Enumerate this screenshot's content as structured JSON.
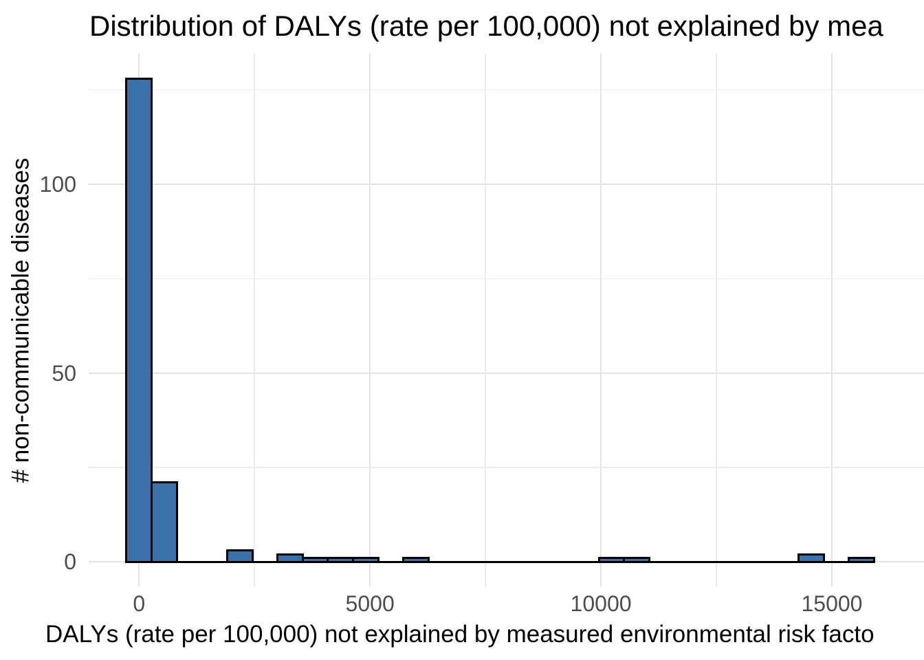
{
  "chart_data": {
    "type": "bar",
    "subtype": "histogram",
    "title": "Distribution of DALYs (rate per 100,000) not explained by mea",
    "xlabel": "DALYs (rate per 100,000) not explained by measured environmental risk facto",
    "ylabel": "# non-communicable diseases",
    "x_ticks": [
      0,
      5000,
      10000,
      15000
    ],
    "x_minor_gridlines": [
      2500,
      7500,
      12500
    ],
    "y_ticks": [
      0,
      50,
      100
    ],
    "y_minor_gridlines": [
      25,
      75,
      125
    ],
    "xlim": [
      -1090,
      16995
    ],
    "ylim": [
      -6.7,
      134.6
    ],
    "binwidth": 545,
    "bins": [
      {
        "x0": -272,
        "x1": 273,
        "count": 128
      },
      {
        "x0": 273,
        "x1": 818,
        "count": 21
      },
      {
        "x0": 1908,
        "x1": 2453,
        "count": 3
      },
      {
        "x0": 2998,
        "x1": 3543,
        "count": 2
      },
      {
        "x0": 3543,
        "x1": 4088,
        "count": 1
      },
      {
        "x0": 4088,
        "x1": 4633,
        "count": 1
      },
      {
        "x0": 4633,
        "x1": 5178,
        "count": 1
      },
      {
        "x0": 5723,
        "x1": 6268,
        "count": 1
      },
      {
        "x0": 9956,
        "x1": 10501,
        "count": 1
      },
      {
        "x0": 10501,
        "x1": 11046,
        "count": 1
      },
      {
        "x0": 14280,
        "x1": 14825,
        "count": 2
      },
      {
        "x0": 15370,
        "x1": 15915,
        "count": 1
      }
    ],
    "baseline_extent": {
      "x0": -272,
      "x1": 15915
    },
    "grid": true,
    "legend": "none",
    "colors": {
      "bar_fill": "#3b70a8",
      "bar_edge": "#000000",
      "grid_major": "#e3e3e3",
      "grid_minor": "#ececec",
      "tick_label": "#4d4d4d",
      "text": "#000000",
      "background": "#ffffff"
    }
  }
}
